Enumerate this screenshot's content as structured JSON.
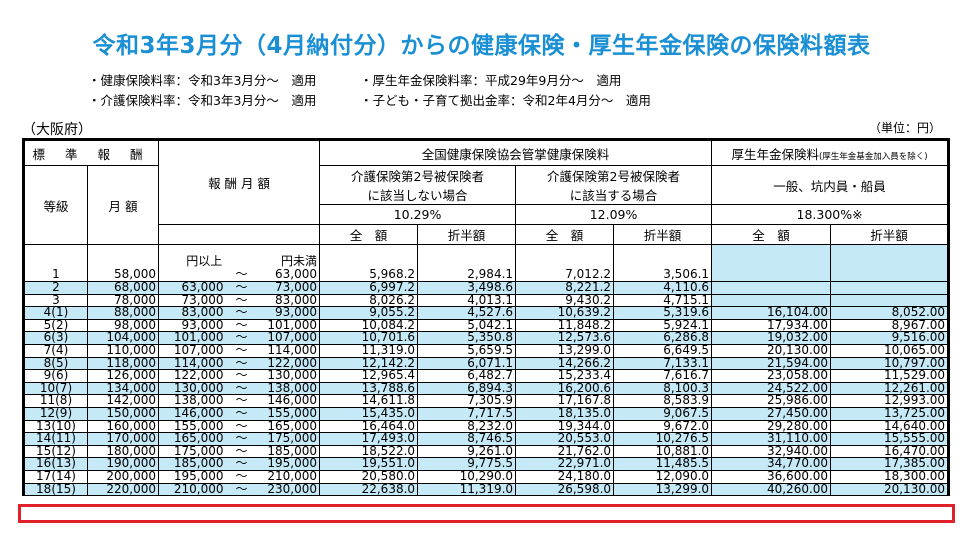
{
  "title": "令和3年3月分（4月納付分）からの健康保険・厚生年金保険の保険料額表",
  "notes": [
    "・健康保険料率：令和3年3月分～　適用",
    "・厚生年金保険料率：平成29年9月分～　適用",
    "・介護保険料率：令和3年3月分～　適用",
    "・子ども・子育て拠出金率：令和2年4月分～　適用"
  ],
  "prefecture": "（大阪府）",
  "unit": "（単位：円）",
  "header": {
    "standard": "標 準 報 酬",
    "grade": "等級",
    "monthly": "月 額",
    "range": "報 酬 月 額",
    "health": "全国健康保険協会管掌健康保険料",
    "care_no_1": "介護保険第2号被保険者",
    "care_no_2": "に該当しない場合",
    "care_yes_1": "介護保険第2号被保険者",
    "care_yes_2": "に該当する場合",
    "rate_no": "10.29%",
    "rate_yes": "12.09%",
    "pension": "厚生年金保険料",
    "pension_note": "(厚生年金基金加入員を除く)",
    "pension_type": "一般、坑内員・船員",
    "rate_pension": "18.300%※",
    "full": "全　額",
    "half": "折半額",
    "from_label": "円以上",
    "to_label": "円未満"
  },
  "rows": [
    {
      "grade": "1",
      "monthly": "58,000",
      "from": "",
      "to": "63,000",
      "h_full": "5,968.2",
      "h_half": "2,984.1",
      "c_full": "7,012.2",
      "c_half": "3,506.1",
      "p_full": "",
      "p_half": ""
    },
    {
      "grade": "2",
      "monthly": "68,000",
      "from": "63,000",
      "to": "73,000",
      "h_full": "6,997.2",
      "h_half": "3,498.6",
      "c_full": "8,221.2",
      "c_half": "4,110.6",
      "p_full": "",
      "p_half": ""
    },
    {
      "grade": "3",
      "monthly": "78,000",
      "from": "73,000",
      "to": "83,000",
      "h_full": "8,026.2",
      "h_half": "4,013.1",
      "c_full": "9,430.2",
      "c_half": "4,715.1",
      "p_full": "",
      "p_half": ""
    },
    {
      "grade": "4(1)",
      "monthly": "88,000",
      "from": "83,000",
      "to": "93,000",
      "h_full": "9,055.2",
      "h_half": "4,527.6",
      "c_full": "10,639.2",
      "c_half": "5,319.6",
      "p_full": "16,104.00",
      "p_half": "8,052.00"
    },
    {
      "grade": "5(2)",
      "monthly": "98,000",
      "from": "93,000",
      "to": "101,000",
      "h_full": "10,084.2",
      "h_half": "5,042.1",
      "c_full": "11,848.2",
      "c_half": "5,924.1",
      "p_full": "17,934.00",
      "p_half": "8,967.00"
    },
    {
      "grade": "6(3)",
      "monthly": "104,000",
      "from": "101,000",
      "to": "107,000",
      "h_full": "10,701.6",
      "h_half": "5,350.8",
      "c_full": "12,573.6",
      "c_half": "6,286.8",
      "p_full": "19,032.00",
      "p_half": "9,516.00"
    },
    {
      "grade": "7(4)",
      "monthly": "110,000",
      "from": "107,000",
      "to": "114,000",
      "h_full": "11,319.0",
      "h_half": "5,659.5",
      "c_full": "13,299.0",
      "c_half": "6,649.5",
      "p_full": "20,130.00",
      "p_half": "10,065.00"
    },
    {
      "grade": "8(5)",
      "monthly": "118,000",
      "from": "114,000",
      "to": "122,000",
      "h_full": "12,142.2",
      "h_half": "6,071.1",
      "c_full": "14,266.2",
      "c_half": "7,133.1",
      "p_full": "21,594.00",
      "p_half": "10,797.00"
    },
    {
      "grade": "9(6)",
      "monthly": "126,000",
      "from": "122,000",
      "to": "130,000",
      "h_full": "12,965.4",
      "h_half": "6,482.7",
      "c_full": "15,233.4",
      "c_half": "7,616.7",
      "p_full": "23,058.00",
      "p_half": "11,529.00"
    },
    {
      "grade": "10(7)",
      "monthly": "134,000",
      "from": "130,000",
      "to": "138,000",
      "h_full": "13,788.6",
      "h_half": "6,894.3",
      "c_full": "16,200.6",
      "c_half": "8,100.3",
      "p_full": "24,522.00",
      "p_half": "12,261.00"
    },
    {
      "grade": "11(8)",
      "monthly": "142,000",
      "from": "138,000",
      "to": "146,000",
      "h_full": "14,611.8",
      "h_half": "7,305.9",
      "c_full": "17,167.8",
      "c_half": "8,583.9",
      "p_full": "25,986.00",
      "p_half": "12,993.00"
    },
    {
      "grade": "12(9)",
      "monthly": "150,000",
      "from": "146,000",
      "to": "155,000",
      "h_full": "15,435.0",
      "h_half": "7,717.5",
      "c_full": "18,135.0",
      "c_half": "9,067.5",
      "p_full": "27,450.00",
      "p_half": "13,725.00"
    },
    {
      "grade": "13(10)",
      "monthly": "160,000",
      "from": "155,000",
      "to": "165,000",
      "h_full": "16,464.0",
      "h_half": "8,232.0",
      "c_full": "19,344.0",
      "c_half": "9,672.0",
      "p_full": "29,280.00",
      "p_half": "14,640.00"
    },
    {
      "grade": "14(11)",
      "monthly": "170,000",
      "from": "165,000",
      "to": "175,000",
      "h_full": "17,493.0",
      "h_half": "8,746.5",
      "c_full": "20,553.0",
      "c_half": "10,276.5",
      "p_full": "31,110.00",
      "p_half": "15,555.00"
    },
    {
      "grade": "15(12)",
      "monthly": "180,000",
      "from": "175,000",
      "to": "185,000",
      "h_full": "18,522.0",
      "h_half": "9,261.0",
      "c_full": "21,762.0",
      "c_half": "10,881.0",
      "p_full": "32,940.00",
      "p_half": "16,470.00"
    },
    {
      "grade": "16(13)",
      "monthly": "190,000",
      "from": "185,000",
      "to": "195,000",
      "h_full": "19,551.0",
      "h_half": "9,775.5",
      "c_full": "22,971.0",
      "c_half": "11,485.5",
      "p_full": "34,770.00",
      "p_half": "17,385.00"
    },
    {
      "grade": "17(14)",
      "monthly": "200,000",
      "from": "195,000",
      "to": "210,000",
      "h_full": "20,580.0",
      "h_half": "10,290.0",
      "c_full": "24,180.0",
      "c_half": "12,090.0",
      "p_full": "36,600.00",
      "p_half": "18,300.00"
    },
    {
      "grade": "18(15)",
      "monthly": "220,000",
      "from": "210,000",
      "to": "230,000",
      "h_full": "22,638.0",
      "h_half": "11,319.0",
      "c_full": "26,598.0",
      "c_half": "13,299.0",
      "p_full": "40,260.00",
      "p_half": "20,130.00"
    }
  ],
  "colors": {
    "title": "#1a8fd4",
    "stripe": "#c5e9f6",
    "highlight": "#e0202a"
  }
}
